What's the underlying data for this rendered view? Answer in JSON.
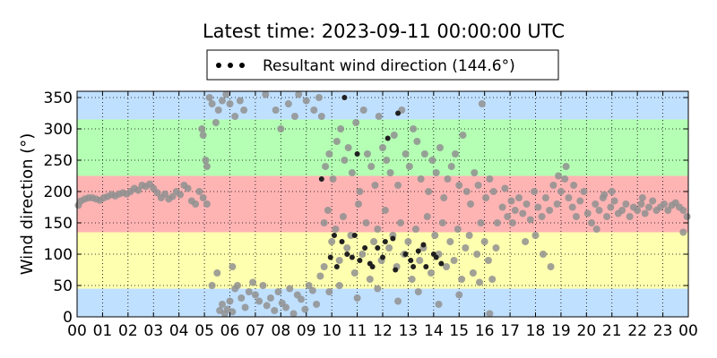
{
  "chart_data": {
    "type": "scatter",
    "title": "Latest time: 2023-09-11 00:00:00 UTC",
    "ylabel": "Wind direction (°)",
    "xlabel": "",
    "xlim": [
      0,
      24
    ],
    "ylim": [
      0,
      360
    ],
    "x_tick_labels": [
      "00",
      "01",
      "02",
      "03",
      "04",
      "05",
      "06",
      "07",
      "08",
      "09",
      "10",
      "11",
      "12",
      "13",
      "14",
      "15",
      "16",
      "17",
      "18",
      "19",
      "20",
      "21",
      "22",
      "23",
      "00"
    ],
    "y_ticks": [
      0,
      50,
      100,
      150,
      200,
      250,
      300,
      350
    ],
    "grid": true,
    "legend": {
      "placement": "top-center",
      "label": "Resultant wind direction (144.6°)"
    },
    "bands": [
      {
        "from": 0,
        "to": 45,
        "color": "#c0e0ff"
      },
      {
        "from": 45,
        "to": 135,
        "color": "#ffffb0"
      },
      {
        "from": 135,
        "to": 225,
        "color": "#ffb4b4"
      },
      {
        "from": 225,
        "to": 315,
        "color": "#b4ffb4"
      },
      {
        "from": 315,
        "to": 360,
        "color": "#c0e0ff"
      }
    ],
    "colors": {
      "point_gray": "#909090",
      "point_dark": "#202020"
    },
    "series": [
      {
        "values_gray": [
          [
            0.05,
            178
          ],
          [
            0.15,
            185
          ],
          [
            0.3,
            188
          ],
          [
            0.45,
            190
          ],
          [
            0.6,
            190
          ],
          [
            0.75,
            188
          ],
          [
            0.9,
            186
          ],
          [
            1.05,
            190
          ],
          [
            1.2,
            192
          ],
          [
            1.35,
            195
          ],
          [
            1.5,
            193
          ],
          [
            1.65,
            196
          ],
          [
            1.8,
            198
          ],
          [
            1.95,
            196
          ],
          [
            2.1,
            200
          ],
          [
            2.25,
            205
          ],
          [
            2.4,
            202
          ],
          [
            2.55,
            210
          ],
          [
            2.7,
            208
          ],
          [
            2.85,
            212
          ],
          [
            3.0,
            205
          ],
          [
            3.15,
            198
          ],
          [
            3.3,
            190
          ],
          [
            3.45,
            196
          ],
          [
            3.6,
            188
          ],
          [
            3.75,
            192
          ],
          [
            3.9,
            200
          ],
          [
            4.05,
            195
          ],
          [
            4.2,
            210
          ],
          [
            4.35,
            205
          ],
          [
            4.5,
            185
          ],
          [
            4.65,
            180
          ],
          [
            4.8,
            200
          ],
          [
            4.95,
            190
          ],
          [
            5.1,
            180
          ],
          [
            4.9,
            300
          ],
          [
            4.95,
            290
          ],
          [
            5.05,
            250
          ],
          [
            5.1,
            240
          ],
          [
            5.2,
            350
          ],
          [
            5.3,
            340
          ],
          [
            5.45,
            310
          ],
          [
            5.55,
            330
          ],
          [
            5.7,
            345
          ],
          [
            5.85,
            355
          ],
          [
            6.0,
            340
          ],
          [
            6.2,
            320
          ],
          [
            6.4,
            345
          ],
          [
            6.55,
            330
          ],
          [
            5.6,
            10
          ],
          [
            5.7,
            20
          ],
          [
            5.8,
            5
          ],
          [
            5.9,
            12
          ],
          [
            6.0,
            25
          ],
          [
            6.1,
            8
          ],
          [
            6.2,
            45
          ],
          [
            6.3,
            50
          ],
          [
            6.45,
            30
          ],
          [
            6.6,
            15
          ],
          [
            6.75,
            40
          ],
          [
            6.9,
            55
          ],
          [
            7.0,
            35
          ],
          [
            7.15,
            25
          ],
          [
            7.3,
            50
          ],
          [
            7.45,
            18
          ],
          [
            7.6,
            30
          ],
          [
            7.75,
            10
          ],
          [
            7.9,
            40
          ],
          [
            8.05,
            22
          ],
          [
            8.2,
            15
          ],
          [
            8.35,
            45
          ],
          [
            8.5,
            5
          ],
          [
            8.65,
            35
          ],
          [
            8.8,
            28
          ],
          [
            8.95,
            12
          ],
          [
            9.1,
            50
          ],
          [
            9.25,
            42
          ],
          [
            9.4,
            20
          ],
          [
            9.55,
            65
          ],
          [
            9.7,
            80
          ],
          [
            5.3,
            50
          ],
          [
            5.5,
            70
          ],
          [
            6.1,
            80
          ],
          [
            7.4,
            355
          ],
          [
            7.8,
            330
          ],
          [
            8.0,
            300
          ],
          [
            8.3,
            340
          ],
          [
            8.55,
            320
          ],
          [
            8.7,
            355
          ],
          [
            9.0,
            345
          ],
          [
            9.3,
            330
          ],
          [
            9.5,
            350
          ],
          [
            9.6,
            320
          ],
          [
            9.75,
            240
          ],
          [
            9.9,
            260
          ],
          [
            10.05,
            220
          ],
          [
            10.2,
            280
          ],
          [
            10.35,
            300
          ],
          [
            10.5,
            250
          ],
          [
            10.65,
            270
          ],
          [
            10.8,
            230
          ],
          [
            10.95,
            310
          ],
          [
            11.1,
            200
          ],
          [
            11.25,
            330
          ],
          [
            11.4,
            260
          ],
          [
            11.55,
            240
          ],
          [
            11.7,
            210
          ],
          [
            11.85,
            320
          ],
          [
            12.0,
            270
          ],
          [
            12.15,
            250
          ],
          [
            12.3,
            230
          ],
          [
            12.45,
            290
          ],
          [
            12.6,
            210
          ],
          [
            12.75,
            330
          ],
          [
            12.9,
            260
          ],
          [
            13.05,
            240
          ],
          [
            13.2,
            300
          ],
          [
            13.35,
            280
          ],
          [
            13.5,
            220
          ],
          [
            13.65,
            260
          ],
          [
            13.8,
            200
          ],
          [
            13.95,
            250
          ],
          [
            14.1,
            230
          ],
          [
            14.25,
            270
          ],
          [
            14.4,
            190
          ],
          [
            14.55,
            220
          ],
          [
            14.7,
            240
          ],
          [
            14.85,
            260
          ],
          [
            15.0,
            210
          ],
          [
            15.15,
            290
          ],
          [
            15.3,
            200
          ],
          [
            15.45,
            180
          ],
          [
            15.6,
            230
          ],
          [
            15.75,
            210
          ],
          [
            15.9,
            340
          ],
          [
            16.05,
            190
          ],
          [
            16.2,
            220
          ],
          [
            16.35,
            200
          ],
          [
            9.7,
            150
          ],
          [
            9.85,
            170
          ],
          [
            10.0,
            120
          ],
          [
            10.15,
            140
          ],
          [
            10.3,
            90
          ],
          [
            10.45,
            160
          ],
          [
            10.6,
            110
          ],
          [
            10.75,
            130
          ],
          [
            10.9,
            70
          ],
          [
            11.05,
            180
          ],
          [
            11.2,
            100
          ],
          [
            11.35,
            150
          ],
          [
            11.5,
            60
          ],
          [
            11.65,
            120
          ],
          [
            11.8,
            140
          ],
          [
            11.95,
            90
          ],
          [
            12.1,
            170
          ],
          [
            12.25,
            110
          ],
          [
            12.4,
            130
          ],
          [
            12.55,
            80
          ],
          [
            12.7,
            150
          ],
          [
            12.85,
            100
          ],
          [
            13.0,
            120
          ],
          [
            13.15,
            60
          ],
          [
            13.3,
            140
          ],
          [
            13.45,
            90
          ],
          [
            13.6,
            110
          ],
          [
            13.75,
            160
          ],
          [
            13.9,
            70
          ],
          [
            14.05,
            130
          ],
          [
            14.2,
            100
          ],
          [
            14.35,
            150
          ],
          [
            14.5,
            80
          ],
          [
            14.65,
            120
          ],
          [
            14.8,
            90
          ],
          [
            14.95,
            140
          ],
          [
            15.1,
            60
          ],
          [
            15.25,
            110
          ],
          [
            15.4,
            130
          ],
          [
            15.55,
            70
          ],
          [
            15.7,
            100
          ],
          [
            15.85,
            150
          ],
          [
            16.0,
            120
          ],
          [
            16.15,
            90
          ],
          [
            16.3,
            60
          ],
          [
            16.45,
            110
          ],
          [
            9.9,
            40
          ],
          [
            10.3,
            50
          ],
          [
            11.0,
            30
          ],
          [
            11.8,
            45
          ],
          [
            12.6,
            25
          ],
          [
            13.4,
            40
          ],
          [
            14.2,
            20
          ],
          [
            15.0,
            35
          ],
          [
            15.8,
            55
          ],
          [
            16.2,
            5
          ],
          [
            16.5,
            150
          ],
          [
            16.7,
            175
          ],
          [
            16.9,
            160
          ],
          [
            17.05,
            185
          ],
          [
            17.2,
            170
          ],
          [
            17.35,
            190
          ],
          [
            17.5,
            165
          ],
          [
            17.65,
            180
          ],
          [
            17.8,
            155
          ],
          [
            17.95,
            200
          ],
          [
            18.1,
            175
          ],
          [
            18.25,
            160
          ],
          [
            18.4,
            190
          ],
          [
            18.55,
            170
          ],
          [
            18.7,
            210
          ],
          [
            18.85,
            180
          ],
          [
            19.0,
            200
          ],
          [
            19.15,
            220
          ],
          [
            19.3,
            190
          ],
          [
            19.45,
            175
          ],
          [
            19.6,
            160
          ],
          [
            19.75,
            185
          ],
          [
            19.9,
            200
          ],
          [
            20.05,
            165
          ],
          [
            20.2,
            150
          ],
          [
            20.35,
            180
          ],
          [
            20.5,
            170
          ],
          [
            20.65,
            190
          ],
          [
            20.8,
            160
          ],
          [
            20.95,
            175
          ],
          [
            21.1,
            185
          ],
          [
            21.25,
            165
          ],
          [
            21.4,
            170
          ],
          [
            21.55,
            180
          ],
          [
            21.7,
            160
          ],
          [
            21.85,
            175
          ],
          [
            22.0,
            170
          ],
          [
            22.15,
            180
          ],
          [
            22.3,
            165
          ],
          [
            22.45,
            175
          ],
          [
            22.6,
            185
          ],
          [
            22.75,
            170
          ],
          [
            22.9,
            175
          ],
          [
            23.05,
            180
          ],
          [
            23.2,
            170
          ],
          [
            23.35,
            178
          ],
          [
            23.5,
            182
          ],
          [
            23.65,
            175
          ],
          [
            23.8,
            170
          ],
          [
            23.95,
            160
          ],
          [
            18.0,
            130
          ],
          [
            18.3,
            100
          ],
          [
            18.6,
            80
          ],
          [
            19.2,
            240
          ],
          [
            19.5,
            210
          ],
          [
            20.4,
            140
          ],
          [
            21.0,
            200
          ],
          [
            17.6,
            120
          ],
          [
            18.9,
            225
          ],
          [
            23.8,
            135
          ],
          [
            16.8,
            205
          ],
          [
            17.1,
            150
          ],
          [
            22.2,
            190
          ],
          [
            20.7,
            195
          ]
        ],
        "values_dark": [
          [
            9.6,
            220
          ],
          [
            10.1,
            130
          ],
          [
            10.4,
            120
          ],
          [
            10.6,
            100
          ],
          [
            10.9,
            130
          ],
          [
            11.1,
            90
          ],
          [
            11.3,
            110
          ],
          [
            11.5,
            85
          ],
          [
            11.8,
            110
          ],
          [
            12.0,
            95
          ],
          [
            12.2,
            285
          ],
          [
            12.4,
            125
          ],
          [
            12.6,
            325
          ],
          [
            12.9,
            100
          ],
          [
            13.1,
            90
          ],
          [
            13.4,
            105
          ],
          [
            13.7,
            80
          ],
          [
            14.0,
            100
          ],
          [
            14.3,
            85
          ],
          [
            10.2,
            80
          ],
          [
            10.8,
            95
          ],
          [
            11.6,
            80
          ],
          [
            12.5,
            75
          ],
          [
            13.2,
            80
          ],
          [
            14.1,
            95
          ],
          [
            9.95,
            95
          ],
          [
            10.5,
            350
          ],
          [
            11.0,
            260
          ],
          [
            12.1,
            120
          ],
          [
            13.6,
            115
          ]
        ]
      }
    ]
  }
}
